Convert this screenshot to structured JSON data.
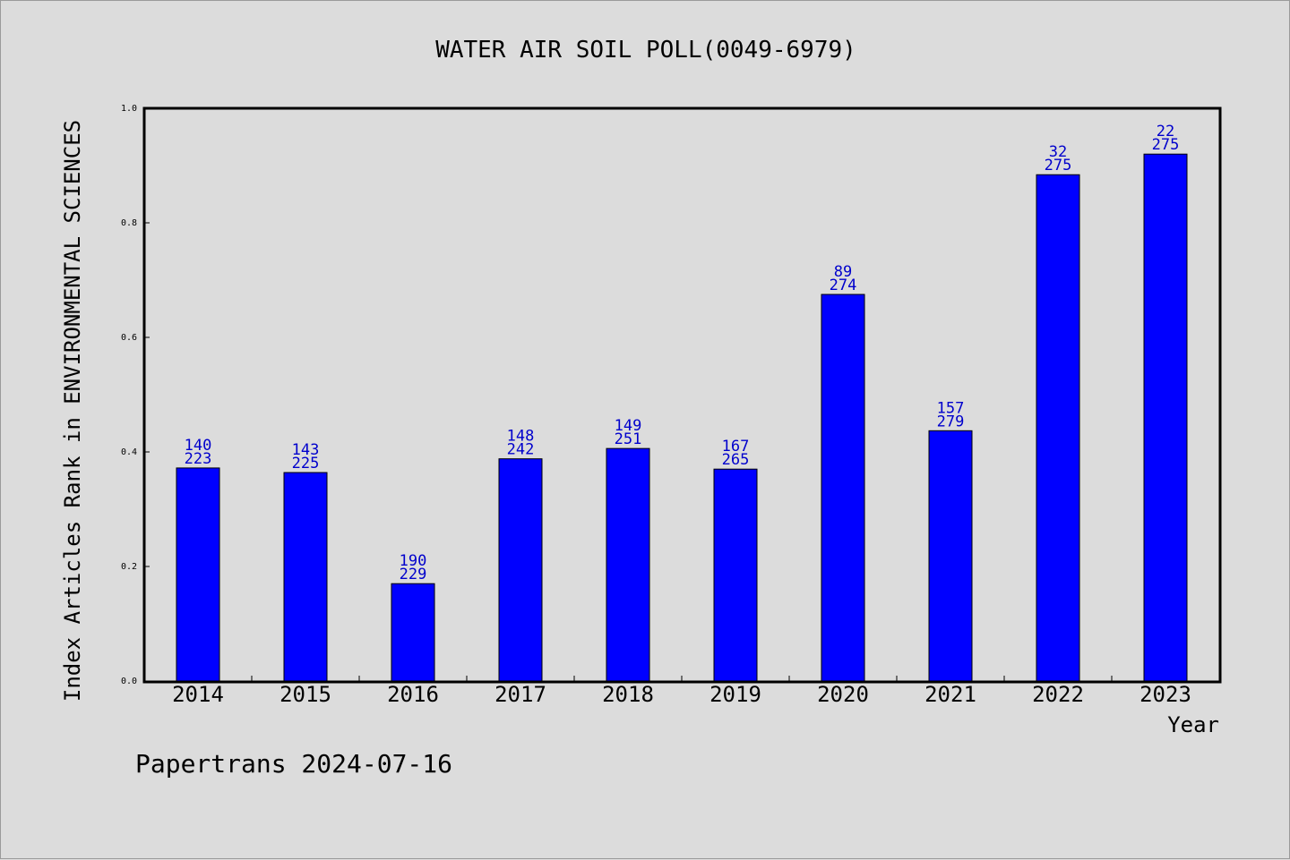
{
  "chart_data": {
    "type": "bar",
    "title": "WATER AIR SOIL POLL(0049-6979)",
    "xlabel": "Year",
    "ylabel": "Index Articles Rank in ENVIRONMENTAL SCIENCES",
    "ylim": [
      0,
      1
    ],
    "yticks": [
      "0.0",
      "0.2",
      "0.4",
      "0.6",
      "0.8",
      "1.0"
    ],
    "categories": [
      "2014",
      "2015",
      "2016",
      "2017",
      "2018",
      "2019",
      "2020",
      "2021",
      "2022",
      "2023"
    ],
    "values": [
      0.372,
      0.364,
      0.17,
      0.388,
      0.406,
      0.37,
      0.675,
      0.437,
      0.884,
      0.92
    ],
    "ranks": [
      "140",
      "143",
      "190",
      "148",
      "149",
      "167",
      "89",
      "157",
      "32",
      "22"
    ],
    "totals": [
      "223",
      "225",
      "229",
      "242",
      "251",
      "265",
      "274",
      "279",
      "275",
      "275"
    ],
    "bar_color": "#0000ff",
    "label_color": "#0000cc",
    "grid": false,
    "legend": "none"
  },
  "footer": "Papertrans 2024-07-16"
}
